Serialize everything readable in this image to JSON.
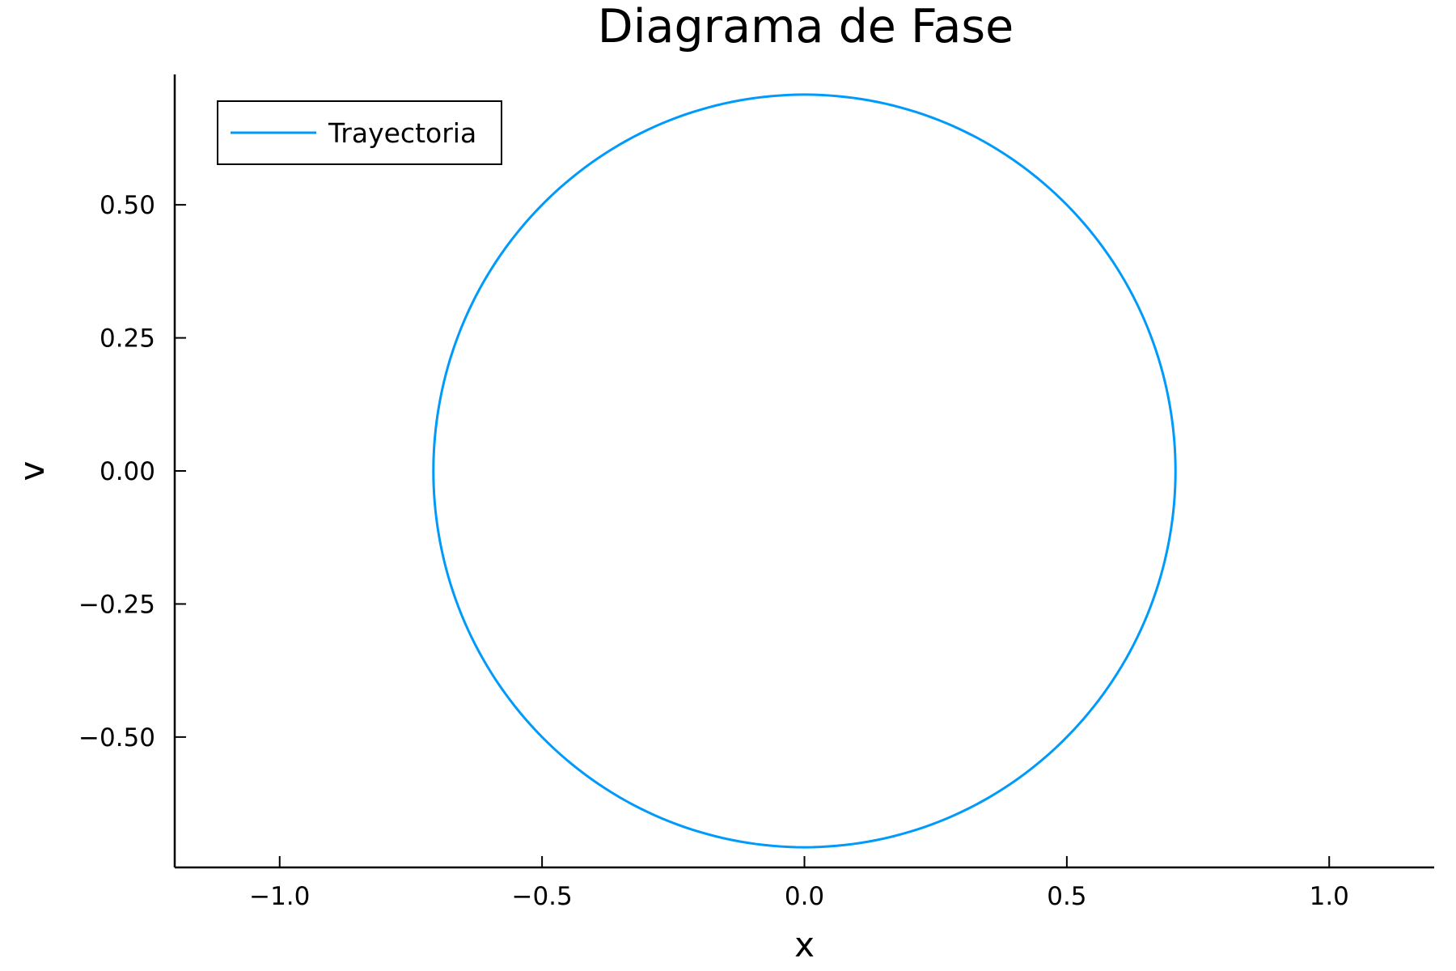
{
  "chart_data": {
    "type": "line",
    "title": "Diagrama de Fase",
    "xlabel": "x",
    "ylabel": "v",
    "xlim": [
      -1.2,
      1.2
    ],
    "ylim": [
      -0.745,
      0.745
    ],
    "xticks": [
      -1.0,
      -0.5,
      0.0,
      0.5,
      1.0
    ],
    "xtick_labels": [
      "−1.0",
      "−0.5",
      "0.0",
      "0.5",
      "1.0"
    ],
    "yticks": [
      -0.5,
      -0.25,
      0.0,
      0.25,
      0.5
    ],
    "ytick_labels": [
      "−0.50",
      "−0.25",
      "0.00",
      "0.25",
      "0.50"
    ],
    "grid": false,
    "legend_position": "top-left",
    "series": [
      {
        "name": "Trayectoria",
        "color": "#009AFA",
        "x": [
          0.7071,
          0.6963,
          0.6645,
          0.6124,
          0.5417,
          0.4545,
          0.3536,
          0.2418,
          0.1228,
          0.0,
          -0.1228,
          -0.2418,
          -0.3536,
          -0.4545,
          -0.5417,
          -0.6124,
          -0.6645,
          -0.6963,
          -0.7071,
          -0.6963,
          -0.6645,
          -0.6124,
          -0.5417,
          -0.4545,
          -0.3536,
          -0.2418,
          -0.1228,
          0.0,
          0.1228,
          0.2418,
          0.3536,
          0.4545,
          0.5417,
          0.6124,
          0.6645,
          0.6963,
          0.7071
        ],
        "y": [
          0.0,
          0.1228,
          0.2418,
          0.3536,
          0.4545,
          0.5417,
          0.6124,
          0.6645,
          0.6963,
          0.7071,
          0.6963,
          0.6645,
          0.6124,
          0.5417,
          0.4545,
          0.3536,
          0.2418,
          0.1228,
          0.0,
          -0.1228,
          -0.2418,
          -0.3536,
          -0.4545,
          -0.5417,
          -0.6124,
          -0.6645,
          -0.6963,
          -0.7071,
          -0.6963,
          -0.6645,
          -0.6124,
          -0.5417,
          -0.4545,
          -0.3536,
          -0.2418,
          -0.1228,
          0.0
        ]
      }
    ]
  }
}
